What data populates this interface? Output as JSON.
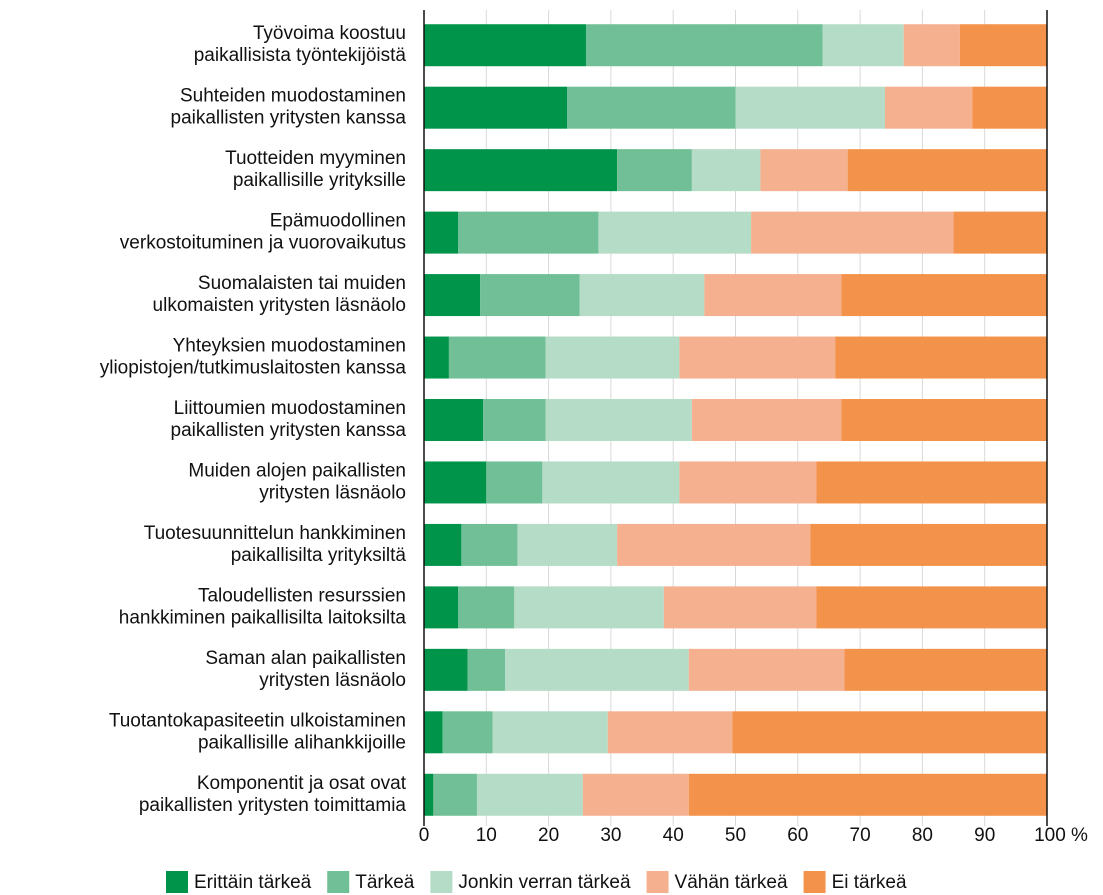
{
  "chart_data": {
    "type": "stacked-barh",
    "categories": [
      [
        "Työvoima koostuu",
        "paikallisista työntekijöistä"
      ],
      [
        "Suhteiden muodostaminen",
        "paikallisten yritysten kanssa"
      ],
      [
        "Tuotteiden myyminen",
        "paikallisille yrityksille"
      ],
      [
        "Epämuodollinen",
        "verkostoituminen ja vuorovaikutus"
      ],
      [
        "Suomalaisten tai muiden",
        "ulkomaisten yritysten läsnäolo"
      ],
      [
        "Yhteyksien muodostaminen",
        "yliopistojen/tutkimuslaitosten kanssa"
      ],
      [
        "Liittoumien muodostaminen",
        "paikallisten yritysten kanssa"
      ],
      [
        "Muiden alojen paikallisten",
        "yritysten läsnäolo"
      ],
      [
        "Tuotesuunnittelun hankkiminen",
        "paikallisilta yrityksiltä"
      ],
      [
        "Taloudellisten resurssien",
        "hankkiminen paikallisilta laitoksilta"
      ],
      [
        "Saman alan paikallisten",
        "yritysten läsnäolo"
      ],
      [
        "Tuotantokapasiteetin ulkoistaminen",
        "paikallisille alihankkijoille"
      ],
      [
        "Komponentit ja osat ovat",
        "paikallisten yritysten toimittamia"
      ]
    ],
    "series": [
      {
        "name": "Erittäin tärkeä",
        "color": "#00944a",
        "values": [
          26,
          23,
          31,
          5.5,
          9,
          4,
          9.5,
          10,
          6,
          5.5,
          7,
          3,
          1.5
        ]
      },
      {
        "name": "Tärkeä",
        "color": "#70bf96",
        "values": [
          38,
          27,
          12,
          22.5,
          16,
          15.5,
          10,
          9,
          9,
          9,
          6,
          8,
          7
        ]
      },
      {
        "name": "Jonkin verran tärkeä",
        "color": "#b5dcc6",
        "values": [
          13,
          24,
          11,
          24.5,
          20,
          21.5,
          23.5,
          22,
          16,
          24,
          29.5,
          18.5,
          17
        ]
      },
      {
        "name": "Vähän tärkeä",
        "color": "#f5b08f",
        "values": [
          9,
          14,
          14,
          32.5,
          22,
          25,
          24,
          22,
          31,
          24.5,
          25,
          20,
          17
        ]
      },
      {
        "name": "Ei tärkeä",
        "color": "#f3924b",
        "values": [
          14,
          12,
          32,
          15,
          33,
          34,
          33,
          37,
          38,
          37,
          32.5,
          50.5,
          57.5
        ]
      }
    ],
    "xlim": [
      0,
      100
    ],
    "xticks": [
      0,
      10,
      20,
      30,
      40,
      50,
      60,
      70,
      80,
      90,
      {
        "value": 100,
        "label": "100 %"
      }
    ],
    "grid": true
  }
}
